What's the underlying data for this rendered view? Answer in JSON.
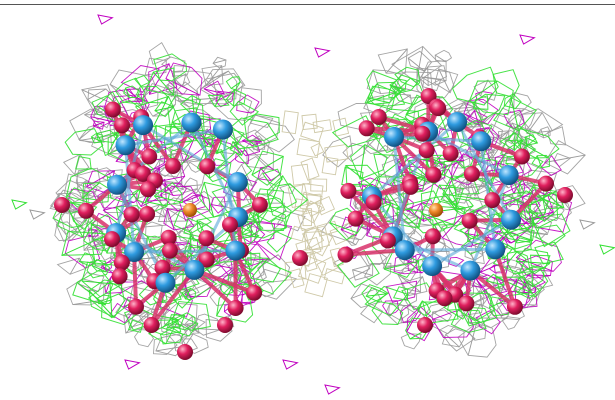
{
  "viewer": {
    "background": "#ffffff",
    "border_color": "#555555"
  },
  "molecule": {
    "cluster_count": 2,
    "colors": {
      "metal_atom": "#2f9be0",
      "oxygen_atom": "#e01f5e",
      "bond": "#d8336b",
      "center_atom": "#f08a2a",
      "density_mesh_positive": "#33e033",
      "density_mesh_negative": "#c000c0",
      "density_mesh_total": "#9a9a9a",
      "bridge_mesh": "#cfc9a8"
    },
    "icons": {
      "metal": "sphere-blue",
      "oxygen": "sphere-red",
      "mesh": "wireframe-grid"
    }
  }
}
